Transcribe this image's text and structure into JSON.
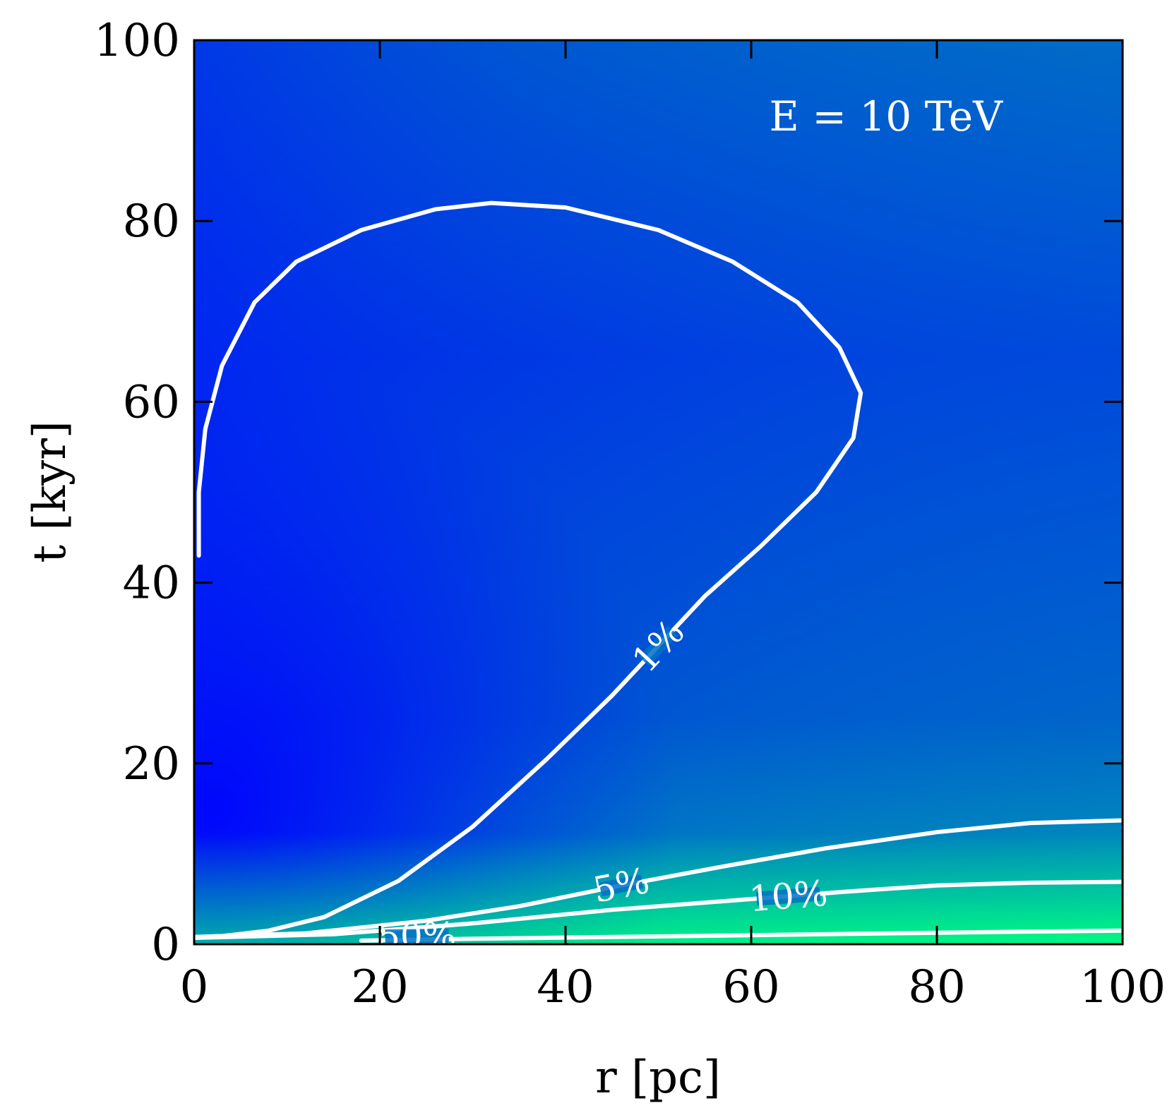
{
  "chart_data": {
    "type": "heatmap",
    "title": "",
    "xlabel": "r [pc]",
    "ylabel": "t [kyr]",
    "xlim": [
      0,
      100
    ],
    "ylim": [
      0,
      100
    ],
    "xticks": [
      0,
      20,
      40,
      60,
      80,
      100
    ],
    "yticks": [
      0,
      20,
      40,
      60,
      80,
      100
    ],
    "xtick_labels": [
      "0",
      "20",
      "40",
      "60",
      "80",
      "100"
    ],
    "ytick_labels": [
      "0",
      "20",
      "40",
      "60",
      "80",
      "100"
    ],
    "annotation": "E = 10 TeV",
    "grid": false,
    "colors": {
      "low": "#0010ff",
      "mid": "#0056d4",
      "mid2": "#0080c0",
      "high": "#00d9a0",
      "max": "#00ff80",
      "contour": "#ffffff"
    },
    "contours": [
      {
        "level": "1%",
        "label_at": [
          50,
          33
        ],
        "points": [
          [
            0.5,
            43
          ],
          [
            0.5,
            50
          ],
          [
            1.2,
            57
          ],
          [
            3,
            64
          ],
          [
            6.5,
            71
          ],
          [
            11,
            75.5
          ],
          [
            18,
            79
          ],
          [
            26,
            81.3
          ],
          [
            32,
            82
          ],
          [
            40,
            81.5
          ],
          [
            50,
            79
          ],
          [
            58,
            75.5
          ],
          [
            65,
            71
          ],
          [
            69.5,
            66
          ],
          [
            71.8,
            61
          ],
          [
            71,
            56
          ],
          [
            67,
            50
          ],
          [
            61,
            44
          ],
          [
            55,
            38.5
          ],
          [
            50,
            33
          ],
          [
            45,
            27.5
          ],
          [
            38,
            20.5
          ],
          [
            30,
            13
          ],
          [
            22,
            7
          ],
          [
            14,
            3
          ],
          [
            8,
            1.5
          ],
          [
            3,
            0.9
          ],
          [
            0,
            0.8
          ]
        ]
      },
      {
        "level": "5%",
        "label_at": [
          46,
          6.5
        ],
        "points": [
          [
            0,
            0.8
          ],
          [
            12,
            1.2
          ],
          [
            25,
            2.6
          ],
          [
            35,
            4.2
          ],
          [
            46,
            6.5
          ],
          [
            57,
            8.6
          ],
          [
            68,
            10.6
          ],
          [
            80,
            12.4
          ],
          [
            90,
            13.4
          ],
          [
            100,
            13.7
          ]
        ]
      },
      {
        "level": "10%",
        "label_at": [
          64,
          5.3
        ],
        "points": [
          [
            0,
            0.7
          ],
          [
            15,
            1.1
          ],
          [
            30,
            2.3
          ],
          [
            45,
            3.8
          ],
          [
            60,
            5
          ],
          [
            70,
            5.8
          ],
          [
            80,
            6.5
          ],
          [
            90,
            6.8
          ],
          [
            100,
            6.9
          ]
        ]
      },
      {
        "level": "50%",
        "label_at": [
          24,
          0.9
        ],
        "points": [
          [
            18,
            0.4
          ],
          [
            30,
            0.6
          ],
          [
            45,
            0.8
          ],
          [
            60,
            1.0
          ],
          [
            75,
            1.2
          ],
          [
            90,
            1.4
          ],
          [
            100,
            1.5
          ]
        ]
      }
    ]
  }
}
